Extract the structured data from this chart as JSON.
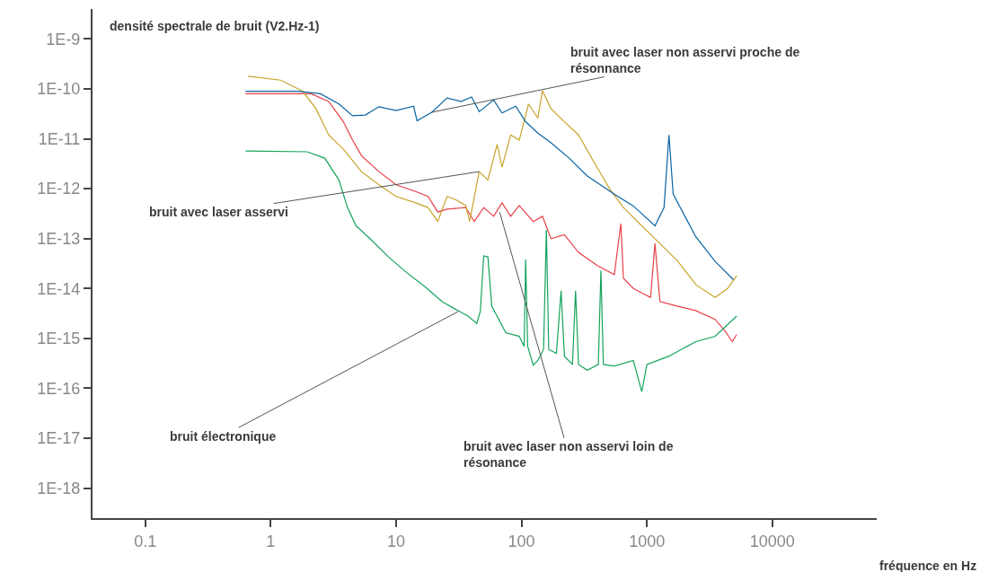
{
  "chart_data": {
    "type": "line",
    "ylabel": "densité spectrale de bruit (V2.Hz-1)",
    "xlabel": "fréquence en Hz",
    "log": "xy",
    "marker": "none",
    "line_style": "solid",
    "xlim": [
      0.038,
      68000
    ],
    "ylim": [
      2.5e-19,
      4e-09
    ],
    "xticks": [
      0.1,
      1,
      10,
      100,
      1000,
      10000
    ],
    "yticks": [
      {
        "value": 1e-09,
        "label": "1E-9"
      },
      {
        "value": 1e-10,
        "label": "1E-10"
      },
      {
        "value": 1e-11,
        "label": "1E-11"
      },
      {
        "value": 1e-12,
        "label": "1E-12"
      },
      {
        "value": 1e-13,
        "label": "1E-13"
      },
      {
        "value": 1e-14,
        "label": "1E-14"
      },
      {
        "value": 1e-15,
        "label": "1E-15"
      },
      {
        "value": 1e-16,
        "label": "1E-16"
      },
      {
        "value": 1e-17,
        "label": "1E-17"
      },
      {
        "value": 1e-18,
        "label": "1E-18"
      }
    ],
    "series": [
      {
        "color": "#e84049",
        "x": [
          0.63,
          2.1,
          2.9,
          3.8,
          4.5,
          5.3,
          7.3,
          10,
          14.3,
          18,
          21.5,
          25.5,
          36,
          42,
          50,
          60,
          70,
          82,
          96,
          124,
          147,
          172,
          220,
          285,
          400,
          550,
          620,
          650,
          780,
          1070,
          1160,
          1270,
          1770,
          2450,
          3500,
          4200,
          4800,
          5200
        ],
        "values": [
          8e-11,
          8e-11,
          5.6e-11,
          2.2e-11,
          9.4e-12,
          4.6e-12,
          2.2e-12,
          1.2e-12,
          8.8e-13,
          7e-13,
          3.4e-13,
          3.9e-13,
          4.2e-13,
          2.2e-13,
          4.2e-13,
          2.8e-13,
          5.2e-13,
          2.8e-13,
          4.6e-13,
          2.2e-13,
          2.8e-13,
          1e-13,
          1.2e-13,
          5.3e-14,
          2.9e-14,
          1.9e-14,
          2e-13,
          1.6e-14,
          1e-14,
          6.6e-15,
          8e-14,
          5.5e-15,
          4.4e-15,
          3.6e-15,
          2.4e-15,
          1.4e-15,
          8.6e-16,
          1.2e-15
        ]
      },
      {
        "color": "#13a35a",
        "x": [
          0.63,
          1.95,
          2.7,
          3.5,
          4.1,
          4.8,
          6.2,
          8.7,
          12.1,
          16.9,
          23.5,
          30,
          37.5,
          44,
          47,
          50,
          54,
          58,
          75,
          96,
          105,
          108,
          112,
          124,
          135,
          150,
          158,
          165,
          190,
          207,
          220,
          255,
          270,
          285,
          335,
          410,
          430,
          450,
          550,
          780,
          910,
          1000,
          1500,
          2450,
          3500,
          5200
        ],
        "values": [
          5.7e-12,
          5.5e-12,
          4.1e-12,
          1.5e-12,
          4.2e-13,
          1.8e-13,
          1e-13,
          4.3e-14,
          2.1e-14,
          1.1e-14,
          5.4e-15,
          3.8e-15,
          2.8e-15,
          2e-15,
          3.5e-15,
          4.5e-14,
          4.3e-14,
          4.4e-15,
          1.3e-15,
          1.1e-15,
          6.9e-16,
          3.8e-14,
          7e-16,
          2.9e-16,
          3.6e-16,
          6e-16,
          1.5e-13,
          6e-16,
          5e-16,
          9e-15,
          4.4e-16,
          3e-16,
          9e-15,
          3e-16,
          2.3e-16,
          3e-16,
          2.3e-14,
          3e-16,
          2.8e-16,
          3.6e-16,
          8.6e-17,
          3e-16,
          4.4e-16,
          8.6e-16,
          1.1e-15,
          2.8e-15
        ]
      },
      {
        "color": "#c8a42c",
        "x": [
          0.66,
          1.2,
          1.8,
          2.3,
          2.9,
          3.8,
          5.3,
          7.3,
          10,
          14.3,
          18,
          21.5,
          25.5,
          30,
          36,
          38.6,
          46,
          54,
          64,
          70,
          82,
          96,
          114,
          135,
          147,
          172,
          220,
          285,
          400,
          510,
          650,
          910,
          1270,
          1770,
          2450,
          3500,
          4400,
          5200
        ],
        "values": [
          1.8e-10,
          1.5e-10,
          9e-11,
          4e-11,
          1.2e-11,
          6.2e-12,
          2.2e-12,
          1.2e-12,
          7e-13,
          5.2e-13,
          4.2e-13,
          2.2e-13,
          7e-13,
          6e-13,
          4.6e-13,
          2.2e-13,
          2.2e-12,
          1.5e-12,
          7.7e-12,
          2.7e-12,
          1.2e-11,
          9.4e-12,
          5e-11,
          2.6e-11,
          9.2e-11,
          4e-11,
          2.2e-11,
          1.2e-11,
          2.7e-12,
          9.5e-13,
          4.2e-13,
          1.8e-13,
          8e-14,
          3.5e-14,
          1.2e-14,
          6.6e-15,
          1e-14,
          1.8e-14
        ]
      },
      {
        "color": "#0a64a4",
        "x": [
          0.63,
          1.65,
          2.5,
          3.5,
          4.5,
          5.7,
          7.3,
          10,
          13.8,
          14.7,
          19.3,
          25.5,
          33,
          40,
          46,
          60,
          70,
          90,
          108,
          135,
          172,
          240,
          335,
          550,
          780,
          1160,
          1370,
          1500,
          1620,
          2450,
          3500,
          4900
        ],
        "values": [
          9e-11,
          9e-11,
          8e-11,
          5e-11,
          2.9e-11,
          3e-11,
          4.4e-11,
          3.7e-11,
          4.5e-11,
          2.3e-11,
          3.4e-11,
          6.6e-11,
          5.6e-11,
          6.9e-11,
          3.5e-11,
          6e-11,
          3.3e-11,
          4.5e-11,
          2.2e-11,
          1.3e-11,
          8.3e-12,
          4.1e-12,
          1.8e-12,
          7.8e-13,
          4.5e-13,
          1.8e-13,
          4.2e-13,
          1.2e-11,
          7.8e-13,
          1.1e-13,
          3.5e-14,
          1.5e-14
        ]
      }
    ],
    "annotations": [
      {
        "text": "bruit avec laser non asservi proche de\nrésonnance",
        "x": 19.3,
        "y": 3.4e-11
      },
      {
        "text": "bruit avec laser asservi",
        "x": 46,
        "y": 2.2e-12
      },
      {
        "text": "bruit électronique",
        "x": 31.6,
        "y": 3.5e-15
      },
      {
        "text": "bruit avec laser non asservi loin de\nrésonance",
        "x": 67,
        "y": 3.4e-13
      }
    ]
  }
}
